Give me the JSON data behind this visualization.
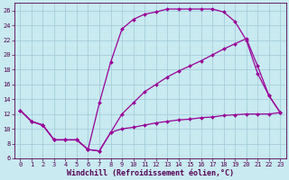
{
  "xlabel": "Windchill (Refroidissement éolien,°C)",
  "background_color": "#c8eaf0",
  "grid_color": "#a0c8d8",
  "line_color": "#990099",
  "xlim": [
    -0.5,
    23.5
  ],
  "ylim": [
    6,
    27
  ],
  "xticks": [
    0,
    1,
    2,
    3,
    4,
    5,
    6,
    7,
    8,
    9,
    10,
    11,
    12,
    13,
    14,
    15,
    16,
    17,
    18,
    19,
    20,
    21,
    22,
    23
  ],
  "yticks": [
    6,
    8,
    10,
    12,
    14,
    16,
    18,
    20,
    22,
    24,
    26
  ],
  "line1_x": [
    0,
    1,
    2,
    3,
    4,
    5,
    6,
    7,
    8,
    9,
    10,
    11,
    12,
    13,
    14,
    15,
    16,
    17,
    18,
    19,
    20,
    21,
    22,
    23
  ],
  "line1_y": [
    12.5,
    11.0,
    10.5,
    8.5,
    8.5,
    8.5,
    7.2,
    7.0,
    9.5,
    10.0,
    10.2,
    10.5,
    10.8,
    11.0,
    11.2,
    11.3,
    11.5,
    11.6,
    11.8,
    11.9,
    12.0,
    12.0,
    12.0,
    12.2
  ],
  "line2_x": [
    0,
    1,
    2,
    3,
    4,
    5,
    6,
    7,
    8,
    9,
    10,
    11,
    12,
    13,
    14,
    15,
    16,
    17,
    18,
    19,
    20,
    21,
    22,
    23
  ],
  "line2_y": [
    12.5,
    11.0,
    10.5,
    8.5,
    8.5,
    8.5,
    7.2,
    13.5,
    19.0,
    23.5,
    24.8,
    25.5,
    25.8,
    26.2,
    26.2,
    26.2,
    26.2,
    26.2,
    25.8,
    24.5,
    22.0,
    17.5,
    14.5,
    12.2
  ],
  "line3_x": [
    0,
    1,
    2,
    3,
    4,
    5,
    6,
    7,
    8,
    9,
    10,
    11,
    12,
    13,
    14,
    15,
    16,
    17,
    18,
    19,
    20,
    21,
    22,
    23
  ],
  "line3_y": [
    12.5,
    11.0,
    10.5,
    8.5,
    8.5,
    8.5,
    7.2,
    7.0,
    9.5,
    12.0,
    13.5,
    15.0,
    16.0,
    17.0,
    17.8,
    18.5,
    19.2,
    20.0,
    20.8,
    21.5,
    22.2,
    18.5,
    14.5,
    12.2
  ],
  "marker_size": 2.0,
  "line_width": 0.9,
  "tick_fontsize": 5.0,
  "label_fontsize": 6.0
}
